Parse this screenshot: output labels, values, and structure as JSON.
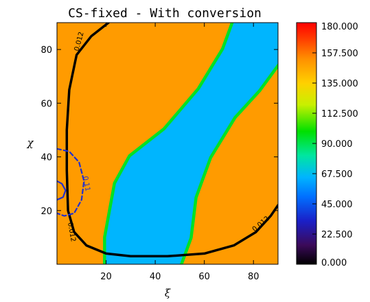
{
  "chart_data": {
    "type": "heatmap",
    "title": "CS-fixed - With conversion",
    "xlabel": "ξ",
    "ylabel": "χ",
    "xlim": [
      0,
      90
    ],
    "ylim": [
      0,
      90
    ],
    "x_ticks": [
      20,
      40,
      60,
      80
    ],
    "y_ticks": [
      20,
      40,
      60,
      80
    ],
    "colorbar": {
      "min": 0,
      "max": 180,
      "ticks": [
        "180.000",
        "157.500",
        "135.000",
        "112.500",
        "90.000",
        "67.500",
        "45.000",
        "22.500",
        "0.000"
      ],
      "colormap": "rainbow"
    },
    "background_level": 150,
    "band_level": 65,
    "regions": [
      {
        "name": "low-value-band",
        "level": 65,
        "polygon": [
          [
            30,
            0
          ],
          [
            50,
            0
          ],
          [
            54,
            10
          ],
          [
            56,
            25
          ],
          [
            62,
            40
          ],
          [
            72,
            55
          ],
          [
            82,
            65
          ],
          [
            90,
            75
          ],
          [
            90,
            90
          ],
          [
            72,
            90
          ],
          [
            68,
            80
          ],
          [
            58,
            65
          ],
          [
            44,
            50
          ],
          [
            30,
            40
          ],
          [
            24,
            30
          ],
          [
            20,
            10
          ],
          [
            20,
            0
          ]
        ]
      }
    ],
    "contours": [
      {
        "label": "0.012",
        "color": "#000000",
        "style": "solid",
        "points": [
          [
            21,
            90
          ],
          [
            14,
            85
          ],
          [
            8,
            78
          ],
          [
            5,
            65
          ],
          [
            4,
            50
          ],
          [
            4,
            35
          ],
          [
            4.5,
            20
          ],
          [
            7,
            12
          ],
          [
            12,
            7
          ],
          [
            20,
            4
          ],
          [
            30,
            3
          ],
          [
            45,
            3
          ],
          [
            60,
            4
          ],
          [
            72,
            7
          ],
          [
            81,
            12
          ],
          [
            87,
            18
          ],
          [
            90,
            22
          ]
        ]
      },
      {
        "label": "0.11",
        "color": "#1f2fd0",
        "style": "dashed",
        "points": [
          [
            0,
            43
          ],
          [
            5,
            42
          ],
          [
            9,
            38
          ],
          [
            11,
            31
          ],
          [
            10,
            24
          ],
          [
            7,
            19
          ],
          [
            3,
            18
          ],
          [
            0,
            19
          ]
        ]
      },
      {
        "label": "",
        "color": "#1f2fd0",
        "style": "solid",
        "points": [
          [
            0,
            31
          ],
          [
            2,
            30
          ],
          [
            3.5,
            27.5
          ],
          [
            2.5,
            25
          ],
          [
            0,
            24
          ]
        ]
      }
    ],
    "contour_labels": [
      {
        "text": "0.012",
        "color": "#000000",
        "x": 9,
        "y": 83,
        "rotate": -75
      },
      {
        "text": "0.012",
        "color": "#000000",
        "x": 6,
        "y": 12,
        "rotate": 80
      },
      {
        "text": "0.012",
        "color": "#000000",
        "x": 83,
        "y": 15,
        "rotate": -40
      },
      {
        "text": "0.11",
        "color": "#1f2fd0",
        "x": 12,
        "y": 30,
        "rotate": 80
      }
    ]
  }
}
